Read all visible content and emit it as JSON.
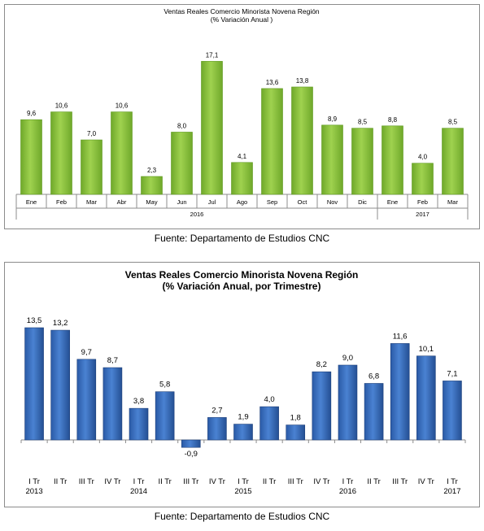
{
  "source_top": "Fuente: Departamento de Estudios CNC",
  "source_bottom": "Fuente: Departamento de Estudios CNC",
  "colors": {
    "green": "#8dc63f",
    "green_dark": "#5e9a1e",
    "blue": "#2e64b4",
    "blue_dark": "#1c3f7a",
    "axis": "#8c8c8c"
  },
  "chart_data": [
    {
      "type": "bar",
      "title": "Ventas Reales Comercio Minorista Novena Región",
      "subtitle": "(% Variación Anual )",
      "categories": [
        "Ene",
        "Feb",
        "Mar",
        "Abr",
        "May",
        "Jun",
        "Jul",
        "Ago",
        "Sep",
        "Oct",
        "Nov",
        "Dic",
        "Ene",
        "Feb",
        "Mar"
      ],
      "groups": [
        {
          "label": "2016",
          "count": 12
        },
        {
          "label": "2017",
          "count": 3
        }
      ],
      "series": [
        {
          "values": [
            9.6,
            10.6,
            7.0,
            10.6,
            2.3,
            8.0,
            17.1,
            4.1,
            13.6,
            13.8,
            8.9,
            8.5,
            8.8,
            4.0,
            8.5
          ]
        }
      ],
      "value_labels": [
        "9,6",
        "10,6",
        "7,0",
        "10,6",
        "2,3",
        "8,0",
        "17,1",
        "4,1",
        "13,6",
        "13,8",
        "8,9",
        "8,5",
        "8,8",
        "4,0",
        "8,5"
      ],
      "ylim": [
        0,
        18.5
      ],
      "grid": false,
      "legend": "none"
    },
    {
      "type": "bar",
      "title": "Ventas Reales Comercio Minorista Novena Región",
      "subtitle": "(% Variación Anual, por Trimestre)",
      "categories": [
        "I Tr",
        "II Tr",
        "III Tr",
        "IV Tr",
        "I Tr",
        "II Tr",
        "III Tr",
        "IV Tr",
        "I Tr",
        "II Tr",
        "III Tr",
        "IV Tr",
        "I Tr",
        "II Tr",
        "III Tr",
        "IV Tr",
        "I Tr"
      ],
      "year_labels": [
        "2013",
        "",
        "",
        "",
        "2014",
        "",
        "",
        "",
        "2015",
        "",
        "",
        "",
        "2016",
        "",
        "",
        "",
        "2017"
      ],
      "series": [
        {
          "values": [
            13.5,
            13.2,
            9.7,
            8.7,
            3.8,
            5.8,
            -0.9,
            2.7,
            1.9,
            4.0,
            1.8,
            8.2,
            9.0,
            6.8,
            11.6,
            10.1,
            7.1
          ]
        }
      ],
      "value_labels": [
        "13,5",
        "13,2",
        "9,7",
        "8,7",
        "3,8",
        "5,8",
        "-0,9",
        "2,7",
        "1,9",
        "4,0",
        "1,8",
        "8,2",
        "9,0",
        "6,8",
        "11,6",
        "10,1",
        "7,1"
      ],
      "ylim": [
        -1.2,
        15
      ],
      "grid": false,
      "legend": "none"
    }
  ]
}
